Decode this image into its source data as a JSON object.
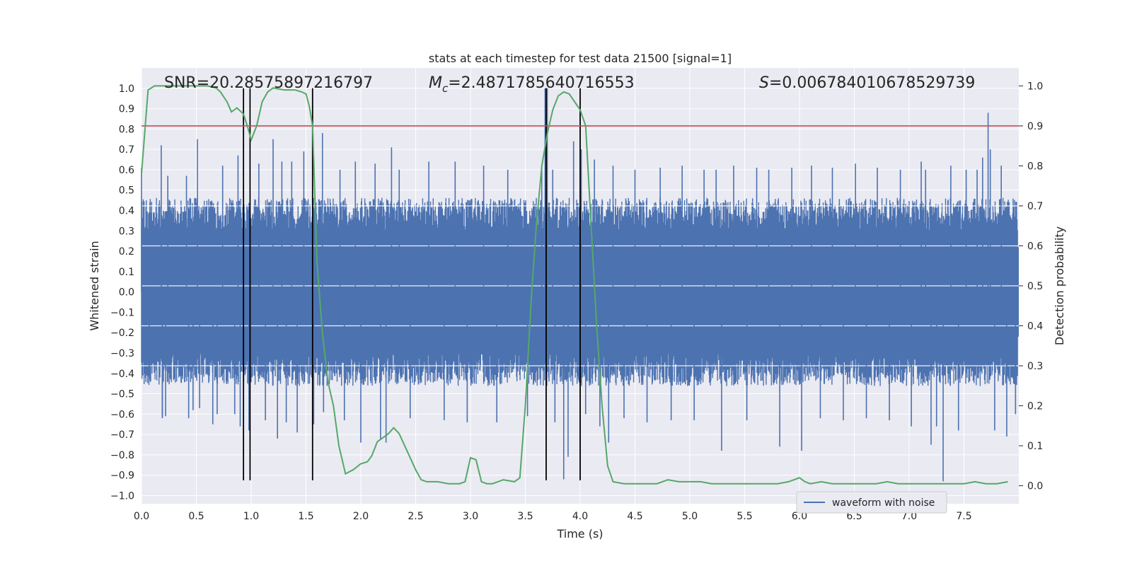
{
  "chart_data": {
    "type": "line",
    "title": "stats at each timestep for test data 21500 [signal=1]",
    "xlabel": "Time (s)",
    "ylabel_left": "Whitened strain",
    "ylabel_right": "Detection probability",
    "xlim": [
      0.0,
      8.0
    ],
    "ylim_left": [
      -1.04,
      1.1
    ],
    "ylim_right": [
      -0.045,
      1.045
    ],
    "x_ticks": [
      "0.0",
      "0.5",
      "1.0",
      "1.5",
      "2.0",
      "2.5",
      "3.0",
      "3.5",
      "4.0",
      "4.5",
      "5.0",
      "5.5",
      "6.0",
      "6.5",
      "7.0",
      "7.5"
    ],
    "y_ticks_left": [
      "-1.0",
      "-0.9",
      "-0.8",
      "-0.7",
      "-0.6",
      "-0.5",
      "-0.4",
      "-0.3",
      "-0.2",
      "-0.1",
      "0.0",
      "0.1",
      "0.2",
      "0.3",
      "0.4",
      "0.5",
      "0.6",
      "0.7",
      "0.8",
      "0.9",
      "1.0"
    ],
    "y_ticks_right": [
      "0.0",
      "0.1",
      "0.2",
      "0.3",
      "0.4",
      "0.5",
      "0.6",
      "0.7",
      "0.8",
      "0.9",
      "1.0"
    ],
    "grid": true,
    "annotations": {
      "snr": "SNR=20.28575897216797",
      "mc_symbol": "M",
      "mc_sub": "c",
      "mc_value": "=2.4871785640716553",
      "s_symbol": "S",
      "s_value": "=0.006784010678529739"
    },
    "threshold": {
      "value_right": 0.9,
      "color": "#c44e52"
    },
    "vertical_lines": {
      "x": [
        0.93,
        0.99,
        1.56,
        3.69,
        4.0
      ],
      "ymin": -0.925,
      "ymax": 1.0,
      "color": "#000000"
    },
    "legend": {
      "placement": "lower-right",
      "entries": [
        "waveform with noise"
      ]
    },
    "series": [
      {
        "name": "waveform with noise",
        "axis": "left",
        "color": "#4c72b0",
        "kind": "noise-band",
        "envelope": {
          "typical_upper": 0.42,
          "typical_lower": -0.42
        },
        "spikes": [
          {
            "x": 0.0,
            "y": 0.61
          },
          {
            "x": 0.18,
            "y": 0.72
          },
          {
            "x": 0.19,
            "y": -0.62
          },
          {
            "x": 0.19,
            "y": -0.61
          },
          {
            "x": 0.07,
            "y": -0.43
          },
          {
            "x": 0.22,
            "y": -0.61
          },
          {
            "x": 0.24,
            "y": 0.57
          },
          {
            "x": 0.41,
            "y": 0.57
          },
          {
            "x": 0.43,
            "y": -0.62
          },
          {
            "x": 0.47,
            "y": -0.58
          },
          {
            "x": 0.51,
            "y": 0.75
          },
          {
            "x": 0.53,
            "y": -0.57
          },
          {
            "x": 0.65,
            "y": -0.65
          },
          {
            "x": 0.69,
            "y": -0.6
          },
          {
            "x": 0.74,
            "y": 0.62
          },
          {
            "x": 0.85,
            "y": -0.6
          },
          {
            "x": 0.88,
            "y": 0.67
          },
          {
            "x": 0.9,
            "y": -0.66
          },
          {
            "x": 0.98,
            "y": -0.68
          },
          {
            "x": 1.07,
            "y": 0.63
          },
          {
            "x": 1.13,
            "y": -0.63
          },
          {
            "x": 1.2,
            "y": 0.75
          },
          {
            "x": 1.24,
            "y": -0.72
          },
          {
            "x": 1.28,
            "y": 0.64
          },
          {
            "x": 1.32,
            "y": -0.64
          },
          {
            "x": 1.37,
            "y": 0.64
          },
          {
            "x": 1.42,
            "y": -0.69
          },
          {
            "x": 1.48,
            "y": 0.69
          },
          {
            "x": 1.57,
            "y": -0.65
          },
          {
            "x": 1.65,
            "y": 0.78
          },
          {
            "x": 1.66,
            "y": -0.59
          },
          {
            "x": 1.81,
            "y": 0.6
          },
          {
            "x": 1.85,
            "y": -0.63
          },
          {
            "x": 1.95,
            "y": 0.64
          },
          {
            "x": 2.0,
            "y": -0.74
          },
          {
            "x": 2.13,
            "y": 0.63
          },
          {
            "x": 2.18,
            "y": -0.72
          },
          {
            "x": 2.23,
            "y": -0.74
          },
          {
            "x": 2.28,
            "y": 0.71
          },
          {
            "x": 2.35,
            "y": 0.6
          },
          {
            "x": 2.45,
            "y": -0.62
          },
          {
            "x": 2.62,
            "y": 0.64
          },
          {
            "x": 2.76,
            "y": -0.63
          },
          {
            "x": 2.86,
            "y": 0.64
          },
          {
            "x": 2.97,
            "y": -0.64
          },
          {
            "x": 3.12,
            "y": 0.62
          },
          {
            "x": 3.24,
            "y": -0.64
          },
          {
            "x": 3.34,
            "y": 0.6
          },
          {
            "x": 3.52,
            "y": -0.61
          },
          {
            "x": 3.65,
            "y": 0.61
          },
          {
            "x": 3.68,
            "y": 1.0
          },
          {
            "x": 3.7,
            "y": 1.0
          },
          {
            "x": 3.75,
            "y": 0.6
          },
          {
            "x": 3.77,
            "y": -0.64
          },
          {
            "x": 3.85,
            "y": -0.92
          },
          {
            "x": 3.89,
            "y": -0.81
          },
          {
            "x": 3.94,
            "y": 0.74
          },
          {
            "x": 4.01,
            "y": 0.7
          },
          {
            "x": 4.05,
            "y": -0.6
          },
          {
            "x": 4.13,
            "y": 0.65
          },
          {
            "x": 4.18,
            "y": -0.66
          },
          {
            "x": 4.26,
            "y": -0.74
          },
          {
            "x": 4.3,
            "y": 0.62
          },
          {
            "x": 4.4,
            "y": -0.62
          },
          {
            "x": 4.5,
            "y": 0.6
          },
          {
            "x": 4.61,
            "y": -0.64
          },
          {
            "x": 4.73,
            "y": 0.61
          },
          {
            "x": 4.83,
            "y": -0.63
          },
          {
            "x": 4.93,
            "y": 0.62
          },
          {
            "x": 5.04,
            "y": -0.63
          },
          {
            "x": 5.13,
            "y": 0.6
          },
          {
            "x": 5.24,
            "y": 0.6
          },
          {
            "x": 5.29,
            "y": -0.78
          },
          {
            "x": 5.4,
            "y": 0.62
          },
          {
            "x": 5.52,
            "y": -0.63
          },
          {
            "x": 5.61,
            "y": 0.61
          },
          {
            "x": 5.72,
            "y": 0.6
          },
          {
            "x": 5.82,
            "y": -0.76
          },
          {
            "x": 5.93,
            "y": 0.61
          },
          {
            "x": 6.02,
            "y": -0.78
          },
          {
            "x": 6.11,
            "y": 0.62
          },
          {
            "x": 6.19,
            "y": -0.62
          },
          {
            "x": 6.3,
            "y": 0.61
          },
          {
            "x": 6.4,
            "y": -0.63
          },
          {
            "x": 6.51,
            "y": 0.63
          },
          {
            "x": 6.61,
            "y": -0.62
          },
          {
            "x": 6.71,
            "y": 0.61
          },
          {
            "x": 6.82,
            "y": -0.63
          },
          {
            "x": 6.92,
            "y": 0.6
          },
          {
            "x": 7.02,
            "y": -0.66
          },
          {
            "x": 7.11,
            "y": 0.64
          },
          {
            "x": 7.15,
            "y": 0.6
          },
          {
            "x": 7.2,
            "y": -0.75
          },
          {
            "x": 7.25,
            "y": -0.66
          },
          {
            "x": 7.31,
            "y": -0.93
          },
          {
            "x": 7.38,
            "y": 0.62
          },
          {
            "x": 7.45,
            "y": -0.68
          },
          {
            "x": 7.52,
            "y": 0.6
          },
          {
            "x": 7.62,
            "y": 0.6
          },
          {
            "x": 7.67,
            "y": 0.66
          },
          {
            "x": 7.72,
            "y": 0.88
          },
          {
            "x": 7.74,
            "y": 0.7
          },
          {
            "x": 7.78,
            "y": -0.68
          },
          {
            "x": 7.84,
            "y": 0.62
          },
          {
            "x": 7.89,
            "y": -0.71
          },
          {
            "x": 7.97,
            "y": -0.6
          }
        ]
      },
      {
        "name": "",
        "axis": "right",
        "color": "#55a868",
        "kind": "line",
        "points": [
          [
            0.0,
            0.78
          ],
          [
            0.06,
            0.99
          ],
          [
            0.12,
            1.0
          ],
          [
            0.2,
            1.0
          ],
          [
            0.3,
            1.0
          ],
          [
            0.4,
            1.0
          ],
          [
            0.5,
            1.0
          ],
          [
            0.6,
            1.0
          ],
          [
            0.68,
            0.995
          ],
          [
            0.72,
            0.985
          ],
          [
            0.78,
            0.96
          ],
          [
            0.82,
            0.935
          ],
          [
            0.87,
            0.945
          ],
          [
            0.93,
            0.93
          ],
          [
            0.97,
            0.895
          ],
          [
            1.0,
            0.865
          ],
          [
            1.05,
            0.9
          ],
          [
            1.1,
            0.96
          ],
          [
            1.15,
            0.985
          ],
          [
            1.2,
            0.995
          ],
          [
            1.3,
            0.99
          ],
          [
            1.4,
            0.99
          ],
          [
            1.46,
            0.985
          ],
          [
            1.5,
            0.98
          ],
          [
            1.53,
            0.95
          ],
          [
            1.56,
            0.9
          ],
          [
            1.6,
            0.56
          ],
          [
            1.65,
            0.38
          ],
          [
            1.7,
            0.26
          ],
          [
            1.75,
            0.2
          ],
          [
            1.8,
            0.1
          ],
          [
            1.86,
            0.03
          ],
          [
            1.93,
            0.04
          ],
          [
            2.0,
            0.055
          ],
          [
            2.06,
            0.06
          ],
          [
            2.1,
            0.075
          ],
          [
            2.15,
            0.11
          ],
          [
            2.2,
            0.12
          ],
          [
            2.25,
            0.13
          ],
          [
            2.3,
            0.145
          ],
          [
            2.35,
            0.13
          ],
          [
            2.4,
            0.1
          ],
          [
            2.45,
            0.07
          ],
          [
            2.5,
            0.04
          ],
          [
            2.55,
            0.015
          ],
          [
            2.6,
            0.01
          ],
          [
            2.7,
            0.01
          ],
          [
            2.8,
            0.005
          ],
          [
            2.9,
            0.005
          ],
          [
            2.95,
            0.01
          ],
          [
            3.0,
            0.07
          ],
          [
            3.05,
            0.065
          ],
          [
            3.1,
            0.01
          ],
          [
            3.15,
            0.005
          ],
          [
            3.2,
            0.005
          ],
          [
            3.3,
            0.015
          ],
          [
            3.4,
            0.01
          ],
          [
            3.45,
            0.02
          ],
          [
            3.5,
            0.2
          ],
          [
            3.55,
            0.45
          ],
          [
            3.6,
            0.65
          ],
          [
            3.65,
            0.8
          ],
          [
            3.7,
            0.88
          ],
          [
            3.75,
            0.94
          ],
          [
            3.8,
            0.975
          ],
          [
            3.85,
            0.985
          ],
          [
            3.9,
            0.98
          ],
          [
            3.95,
            0.96
          ],
          [
            4.0,
            0.94
          ],
          [
            4.05,
            0.9
          ],
          [
            4.1,
            0.65
          ],
          [
            4.15,
            0.4
          ],
          [
            4.2,
            0.2
          ],
          [
            4.25,
            0.05
          ],
          [
            4.3,
            0.01
          ],
          [
            4.4,
            0.005
          ],
          [
            4.5,
            0.005
          ],
          [
            4.6,
            0.005
          ],
          [
            4.7,
            0.005
          ],
          [
            4.8,
            0.015
          ],
          [
            4.9,
            0.01
          ],
          [
            5.0,
            0.01
          ],
          [
            5.1,
            0.01
          ],
          [
            5.2,
            0.005
          ],
          [
            5.3,
            0.005
          ],
          [
            5.4,
            0.005
          ],
          [
            5.5,
            0.005
          ],
          [
            5.6,
            0.005
          ],
          [
            5.7,
            0.005
          ],
          [
            5.8,
            0.005
          ],
          [
            5.9,
            0.01
          ],
          [
            6.0,
            0.02
          ],
          [
            6.05,
            0.01
          ],
          [
            6.1,
            0.005
          ],
          [
            6.2,
            0.01
          ],
          [
            6.3,
            0.005
          ],
          [
            6.4,
            0.005
          ],
          [
            6.5,
            0.005
          ],
          [
            6.6,
            0.005
          ],
          [
            6.7,
            0.005
          ],
          [
            6.8,
            0.01
          ],
          [
            6.9,
            0.005
          ],
          [
            7.0,
            0.005
          ],
          [
            7.1,
            0.005
          ],
          [
            7.2,
            0.005
          ],
          [
            7.3,
            0.005
          ],
          [
            7.4,
            0.005
          ],
          [
            7.5,
            0.005
          ],
          [
            7.6,
            0.01
          ],
          [
            7.7,
            0.005
          ],
          [
            7.8,
            0.005
          ],
          [
            7.9,
            0.01
          ]
        ]
      }
    ]
  }
}
